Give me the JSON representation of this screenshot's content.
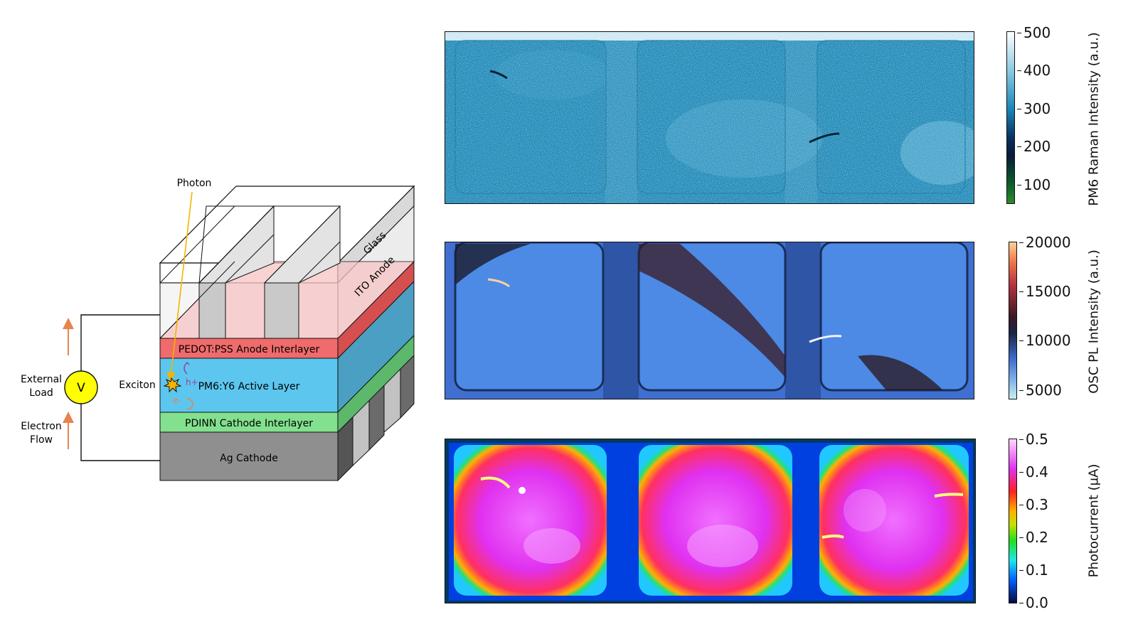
{
  "device": {
    "photon_label": "Photon",
    "glass_label": "Glass",
    "ito_label": "ITO Anode",
    "pedot_label": "PEDOT:PSS Anode Interlayer",
    "active_label": "PM6:Y6 Active Layer",
    "pdinn_label": "PDINN Cathode Interlayer",
    "ag_label": "Ag Cathode",
    "exciton_label": "Exciton",
    "hole_label": "h+",
    "electron_label": "e-",
    "external_load_line1": "External",
    "external_load_line2": "Load",
    "voltmeter_label": "V",
    "electron_flow_line1": "Electron",
    "electron_flow_line2": "Flow",
    "colors": {
      "pedot": "#f06b6b",
      "active": "#5cc6ee",
      "pdinn": "#82e08e",
      "ag": "#8f8f8f",
      "ito": "#f7c4c4",
      "photon_arrow": "#f5b400",
      "flow_arrow": "#e8834e",
      "voltmeter": "#ffff00"
    }
  },
  "maps": {
    "raman": {
      "colorbar_label": "PM6 Raman Intensity (a.u.)",
      "ticks": [
        "500",
        "400",
        "300",
        "200",
        "100"
      ],
      "range": [
        60,
        500
      ],
      "colormap": "ocean_r",
      "base_color": "#1a86b5"
    },
    "pl": {
      "colorbar_label": "OSC PL Intensity (a.u.)",
      "ticks": [
        "20000",
        "15000",
        "10000",
        "5000"
      ],
      "range": [
        4000,
        20000
      ],
      "colormap": "icefire",
      "base_color": "#3f7ee0"
    },
    "photocurrent": {
      "colorbar_label": "Photocurrent (µA)",
      "ticks": [
        "0.5",
        "0.4",
        "0.3",
        "0.2",
        "0.1",
        "0.0"
      ],
      "range": [
        0.0,
        0.5
      ],
      "colormap": "gist_ncar",
      "base_color": "#e040f0"
    }
  }
}
